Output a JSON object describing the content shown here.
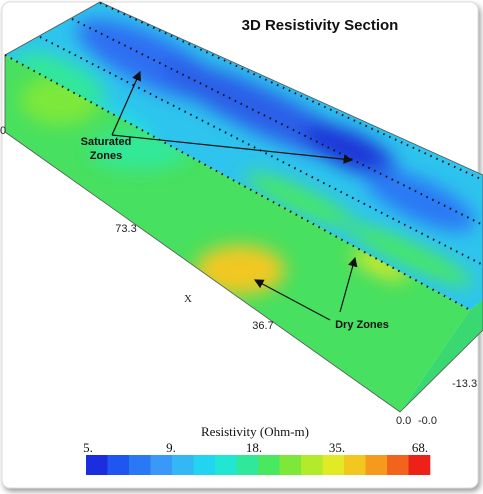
{
  "title": "3D Resistivity Section",
  "annotations": {
    "saturated": [
      "Saturated",
      "Zones"
    ],
    "dry": "Dry Zones"
  },
  "axes": {
    "x_label": "X",
    "x_ticks": [
      "73.3",
      "36.7"
    ],
    "left_edge": "0",
    "corner": [
      "0.0",
      "-0.0"
    ],
    "depth_tick": "-13.3"
  },
  "colorbar": {
    "label": "Resistivity (Ohm-m)",
    "ticks": [
      "5.",
      "9.",
      "18.",
      "35.",
      "68."
    ],
    "colors": [
      "#1a2ee0",
      "#1f55f0",
      "#2a78f5",
      "#3a98f8",
      "#33b8f5",
      "#22d4f0",
      "#22e6d4",
      "#30e89a",
      "#48e860",
      "#7de83a",
      "#b2ea2c",
      "#e2ea26",
      "#f2c820",
      "#f69a1e",
      "#f2641c",
      "#ec2218"
    ]
  }
}
